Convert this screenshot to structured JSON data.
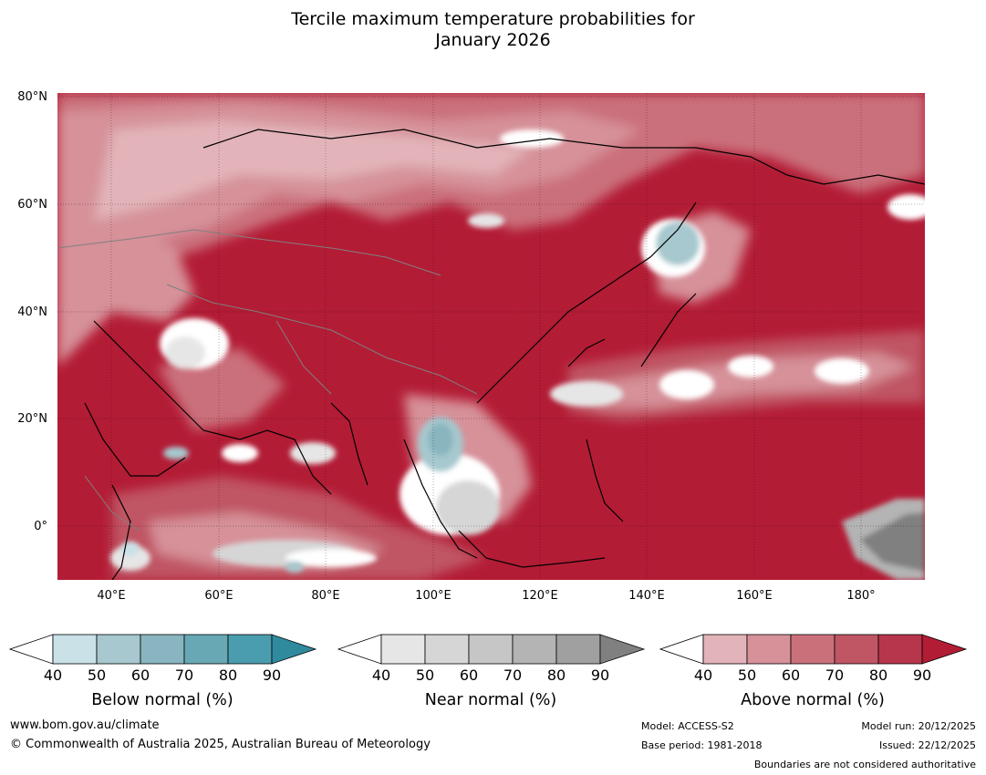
{
  "title": {
    "line1": "Tercile maximum temperature probabilities for",
    "line2": "January 2026"
  },
  "map": {
    "lat_labels": [
      "80°N",
      "60°N",
      "40°N",
      "20°N",
      "0°"
    ],
    "lon_labels": [
      "40°E",
      "60°E",
      "80°E",
      "100°E",
      "120°E",
      "140°E",
      "160°E",
      "180°"
    ],
    "colors": {
      "above_base": "#b31c35",
      "near_white": "#ffffff",
      "coast": "#000000",
      "borders": "#808080"
    }
  },
  "colorbars": [
    {
      "id": "below",
      "label": "Below normal (%)",
      "ticks": [
        "40",
        "50",
        "60",
        "70",
        "80",
        "90"
      ],
      "colors": [
        "#ffffff",
        "#c9e1e7",
        "#a6c8ce",
        "#89b5c0",
        "#68a8b5",
        "#4a9daf",
        "#2f8a9e"
      ]
    },
    {
      "id": "near",
      "label": "Near normal (%)",
      "ticks": [
        "40",
        "50",
        "60",
        "70",
        "80",
        "90"
      ],
      "colors": [
        "#ffffff",
        "#e6e6e6",
        "#d6d6d6",
        "#c6c6c6",
        "#b4b4b4",
        "#a0a0a0",
        "#808080"
      ]
    },
    {
      "id": "above",
      "label": "Above normal (%)",
      "ticks": [
        "40",
        "50",
        "60",
        "70",
        "80",
        "90"
      ],
      "colors": [
        "#ffffff",
        "#e2b4b9",
        "#d69199",
        "#ca707b",
        "#c05564",
        "#b8364b",
        "#b31c35"
      ]
    }
  ],
  "footer": {
    "url": "www.bom.gov.au/climate",
    "copyright": "© Commonwealth of Australia 2025, Australian Bureau of Meteorology",
    "model": "Model: ACCESS-S2",
    "base_period": "Base period: 1981-2018",
    "model_run": "Model run: 20/12/2025",
    "issued": "Issued: 22/12/2025",
    "disclaimer": "Boundaries are not considered authoritative"
  }
}
